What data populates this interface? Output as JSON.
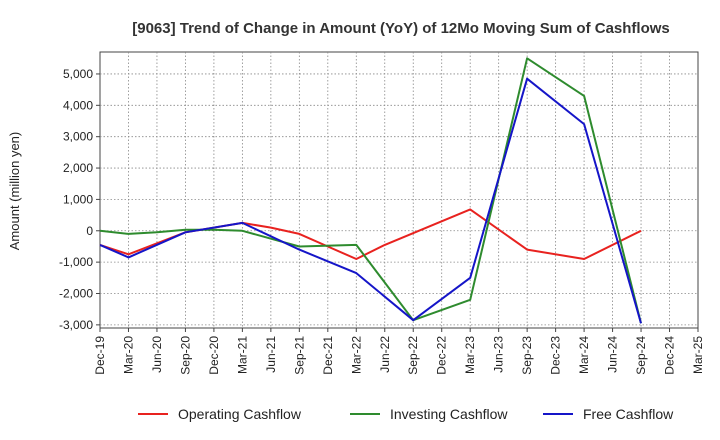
{
  "chart_data": {
    "type": "line",
    "title": "[9063]  Trend of Change in Amount (YoY) of 12Mo Moving Sum of Cashflows",
    "xlabel": "",
    "ylabel": "Amount (million yen)",
    "ylim": [
      -3100,
      5700
    ],
    "y_ticks": [
      -3000,
      -2000,
      -1000,
      0,
      1000,
      2000,
      3000,
      4000,
      5000
    ],
    "y_tick_labels": [
      "-3,000",
      "-2,000",
      "-1,000",
      "0",
      "1,000",
      "2,000",
      "3,000",
      "4,000",
      "5,000"
    ],
    "categories": [
      "Dec-19",
      "Mar-20",
      "Jun-20",
      "Sep-20",
      "Dec-20",
      "Mar-21",
      "Jun-21",
      "Sep-21",
      "Dec-21",
      "Mar-22",
      "Jun-22",
      "Sep-22",
      "Dec-22",
      "Mar-23",
      "Jun-23",
      "Sep-23",
      "Dec-23",
      "Mar-24",
      "Jun-24",
      "Sep-24",
      "Dec-24",
      "Mar-25"
    ],
    "grid": true,
    "legend_position": "bottom",
    "series": [
      {
        "name": "Operating Cashflow",
        "color": "#e8221f",
        "values": [
          -450,
          -750,
          -400,
          -50,
          100,
          250,
          100,
          -100,
          -500,
          -900,
          -450,
          null,
          null,
          680,
          null,
          -600,
          null,
          -900,
          null,
          0,
          null,
          null
        ]
      },
      {
        "name": "Investing Cashflow",
        "color": "#2e8b2e",
        "values": [
          0,
          -100,
          -50,
          30,
          30,
          0,
          null,
          -500,
          null,
          -450,
          null,
          -2850,
          null,
          -2200,
          null,
          5500,
          null,
          4300,
          null,
          -2950,
          null,
          null
        ]
      },
      {
        "name": "Free Cashflow",
        "color": "#1515c8",
        "values": [
          -450,
          -850,
          null,
          -50,
          null,
          250,
          null,
          -600,
          null,
          -1350,
          null,
          -2850,
          null,
          -1500,
          null,
          4850,
          null,
          3400,
          null,
          -2950,
          null,
          null
        ]
      }
    ]
  }
}
